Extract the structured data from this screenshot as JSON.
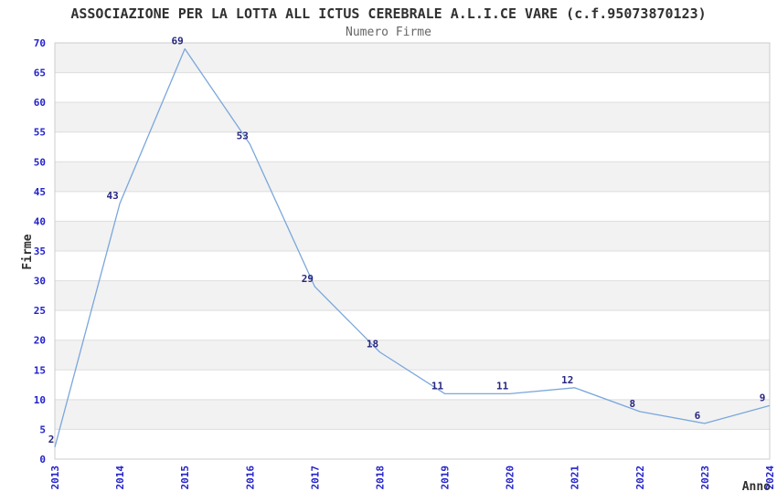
{
  "header": {
    "title": "ASSOCIAZIONE PER LA LOTTA ALL ICTUS CEREBRALE A.L.I.CE VARE (c.f.95073870123)",
    "subtitle": "Numero Firme"
  },
  "chart_data": {
    "type": "line",
    "title": "ASSOCIAZIONE PER LA LOTTA ALL ICTUS CEREBRALE A.L.I.CE VARE (c.f.95073870123)",
    "subtitle": "Numero Firme",
    "x": [
      2013,
      2014,
      2015,
      2016,
      2017,
      2018,
      2019,
      2020,
      2021,
      2022,
      2023,
      2024
    ],
    "values": [
      2,
      43,
      69,
      53,
      29,
      18,
      11,
      11,
      12,
      8,
      6,
      9
    ],
    "xlabel": "Anno",
    "ylabel": "Firme",
    "ylim": [
      0,
      70
    ],
    "ytick_step": 5,
    "grid": true,
    "legend": false,
    "colors": {
      "line": "#7AA7DC",
      "tick_label": "#2222CC",
      "data_label": "#26267F",
      "band": "#F2F2F2",
      "grid": "#DDDDDD",
      "border": "#CCCCCC",
      "title": "#303030",
      "subtitle": "#666666"
    }
  }
}
